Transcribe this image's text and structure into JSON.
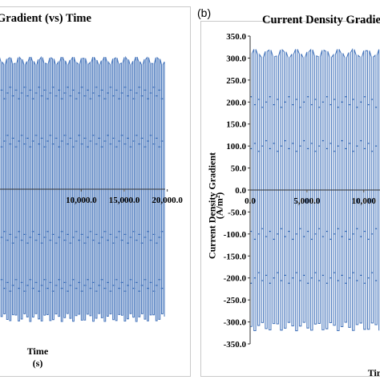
{
  "chart_data": [
    {
      "panel": "a",
      "type": "line",
      "title": "Gradient (vs) Time",
      "xlabel": "Time",
      "xunit": "(s)",
      "ylabel": "",
      "x_ticks": [
        10000,
        15000,
        20000
      ],
      "x_tick_labels": [
        "10,000.0",
        "15,000.0",
        "20,000.0"
      ],
      "xlim": [
        0,
        20500
      ],
      "ylim": [
        -350,
        350
      ],
      "grid": false,
      "series": [
        {
          "color": "#3d6fb8",
          "envelope": {
            "amplitude": 275,
            "cycles": 60,
            "x_range": [
              0,
              20000
            ]
          },
          "mid_band_levels": [
            -200,
            -100,
            100,
            200
          ]
        }
      ]
    },
    {
      "panel": "b",
      "type": "line",
      "title": "Current Density Gradient",
      "panel_label": "(b)",
      "xlabel": "Time",
      "xunit": "",
      "ylabel": "Current Density Gradient",
      "yunit": "(A/m²)",
      "y_ticks": [
        350,
        300,
        250,
        200,
        150,
        100,
        50,
        0,
        -50,
        -100,
        -150,
        -200,
        -250,
        -300,
        -350
      ],
      "y_tick_labels": [
        "350.0",
        "300.0",
        "250.0",
        "200.0",
        "150.0",
        "100.0",
        "50.0",
        "0.0",
        "-50.0",
        "-100.0",
        "-150.0",
        "-200.0",
        "-250.0",
        "-300.0",
        "-350.0"
      ],
      "x_ticks": [
        0,
        5000,
        10000
      ],
      "x_tick_labels": [
        "0.0",
        "5,000.0",
        "10,000"
      ],
      "xlim": [
        0,
        11500
      ],
      "ylim": [
        -350,
        350
      ],
      "grid": false,
      "series": [
        {
          "color": "#3d6fb8",
          "envelope": {
            "amplitude": 320,
            "cycles": 60,
            "x_range": [
              0,
              20000
            ]
          },
          "mid_band_levels": [
            -200,
            -100,
            100,
            200
          ]
        }
      ]
    }
  ]
}
